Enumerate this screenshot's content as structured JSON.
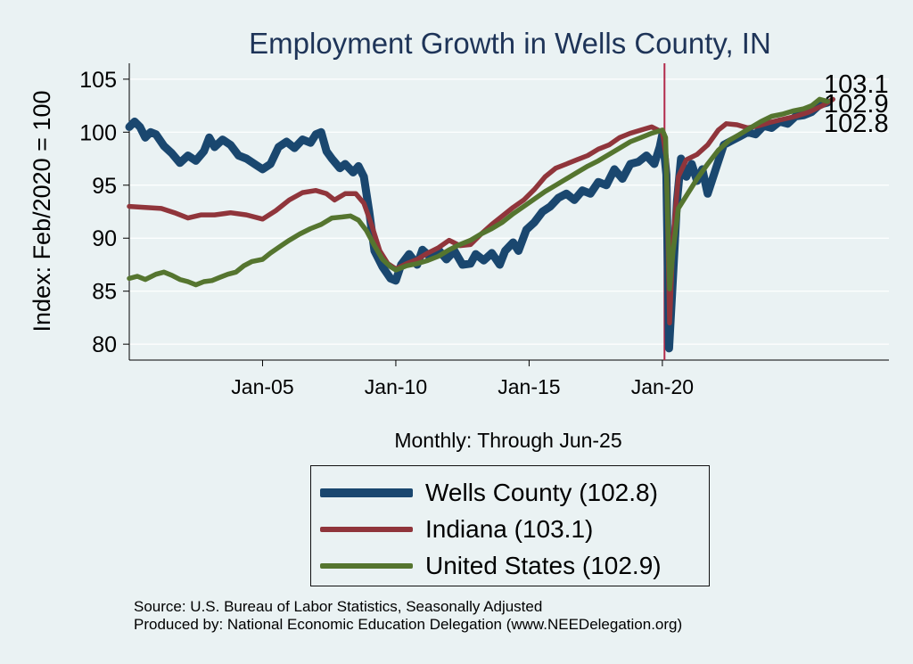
{
  "chart_data": {
    "type": "line",
    "title": "Employment Growth in Wells  County, IN",
    "xlabel": "Monthly: Through Jun-25",
    "ylabel": "Index: Feb/2020 = 100",
    "xlim": [
      2000.0,
      2028.5
    ],
    "ylim": [
      78.5,
      106.5
    ],
    "yticks": [
      80,
      85,
      90,
      95,
      100,
      105
    ],
    "xticks": [
      {
        "label": "Jan-05",
        "value": 2005.0
      },
      {
        "label": "Jan-10",
        "value": 2010.0
      },
      {
        "label": "Jan-15",
        "value": 2015.0
      },
      {
        "label": "Jan-20",
        "value": 2020.0
      }
    ],
    "reference_line_x": 2020.08,
    "series": [
      {
        "name": "Wells County",
        "legend": "Wells  County (102.8)",
        "end_label": "102.8",
        "color": "#1a476f",
        "points": [
          [
            2000.0,
            100.5
          ],
          [
            2000.2,
            101.0
          ],
          [
            2000.4,
            100.5
          ],
          [
            2000.6,
            99.5
          ],
          [
            2000.8,
            100.0
          ],
          [
            2001.0,
            99.8
          ],
          [
            2001.3,
            98.7
          ],
          [
            2001.6,
            98.0
          ],
          [
            2001.9,
            97.1
          ],
          [
            2002.2,
            97.8
          ],
          [
            2002.5,
            97.3
          ],
          [
            2002.8,
            98.2
          ],
          [
            2003.0,
            99.5
          ],
          [
            2003.2,
            98.6
          ],
          [
            2003.5,
            99.3
          ],
          [
            2003.8,
            98.8
          ],
          [
            2004.1,
            97.8
          ],
          [
            2004.4,
            97.5
          ],
          [
            2004.7,
            97.0
          ],
          [
            2005.0,
            96.5
          ],
          [
            2005.3,
            97.0
          ],
          [
            2005.6,
            98.6
          ],
          [
            2005.9,
            99.1
          ],
          [
            2006.2,
            98.5
          ],
          [
            2006.5,
            99.3
          ],
          [
            2006.8,
            99.0
          ],
          [
            2007.0,
            99.8
          ],
          [
            2007.2,
            100.0
          ],
          [
            2007.4,
            98.2
          ],
          [
            2007.6,
            97.5
          ],
          [
            2007.9,
            96.6
          ],
          [
            2008.1,
            97.0
          ],
          [
            2008.4,
            96.2
          ],
          [
            2008.6,
            96.8
          ],
          [
            2008.8,
            95.8
          ],
          [
            2009.0,
            92.5
          ],
          [
            2009.2,
            88.8
          ],
          [
            2009.5,
            87.3
          ],
          [
            2009.8,
            86.2
          ],
          [
            2010.0,
            86.0
          ],
          [
            2010.2,
            87.5
          ],
          [
            2010.5,
            88.5
          ],
          [
            2010.8,
            87.5
          ],
          [
            2011.0,
            88.9
          ],
          [
            2011.3,
            88.2
          ],
          [
            2011.6,
            88.9
          ],
          [
            2011.9,
            88.0
          ],
          [
            2012.2,
            88.8
          ],
          [
            2012.5,
            87.5
          ],
          [
            2012.8,
            87.6
          ],
          [
            2013.0,
            88.5
          ],
          [
            2013.3,
            87.9
          ],
          [
            2013.6,
            88.6
          ],
          [
            2013.9,
            87.5
          ],
          [
            2014.1,
            88.8
          ],
          [
            2014.4,
            89.6
          ],
          [
            2014.6,
            88.8
          ],
          [
            2014.9,
            90.8
          ],
          [
            2015.2,
            91.5
          ],
          [
            2015.5,
            92.5
          ],
          [
            2015.8,
            93.0
          ],
          [
            2016.1,
            93.8
          ],
          [
            2016.4,
            94.2
          ],
          [
            2016.7,
            93.6
          ],
          [
            2017.0,
            94.5
          ],
          [
            2017.3,
            94.2
          ],
          [
            2017.6,
            95.3
          ],
          [
            2017.9,
            95.0
          ],
          [
            2018.2,
            96.5
          ],
          [
            2018.5,
            95.6
          ],
          [
            2018.8,
            97.0
          ],
          [
            2019.1,
            97.2
          ],
          [
            2019.4,
            97.8
          ],
          [
            2019.7,
            97.0
          ],
          [
            2019.9,
            98.6
          ],
          [
            2020.0,
            99.8
          ],
          [
            2020.15,
            96.0
          ],
          [
            2020.25,
            79.6
          ],
          [
            2020.4,
            86.5
          ],
          [
            2020.55,
            93.5
          ],
          [
            2020.7,
            97.5
          ],
          [
            2020.9,
            95.8
          ],
          [
            2021.1,
            97.0
          ],
          [
            2021.3,
            95.4
          ],
          [
            2021.5,
            96.5
          ],
          [
            2021.7,
            94.2
          ],
          [
            2022.0,
            96.5
          ],
          [
            2022.3,
            98.8
          ],
          [
            2022.6,
            99.2
          ],
          [
            2022.9,
            99.6
          ],
          [
            2023.2,
            100.0
          ],
          [
            2023.5,
            99.8
          ],
          [
            2023.8,
            100.6
          ],
          [
            2024.1,
            100.4
          ],
          [
            2024.4,
            101.0
          ],
          [
            2024.7,
            100.8
          ],
          [
            2025.0,
            101.5
          ],
          [
            2025.3,
            101.6
          ],
          [
            2025.6,
            101.9
          ],
          [
            2025.9,
            102.6
          ],
          [
            2026.2,
            102.8
          ]
        ]
      },
      {
        "name": "Indiana",
        "legend": "Indiana (103.1)",
        "end_label": "103.1",
        "color": "#90353b",
        "points": [
          [
            2000.0,
            93.0
          ],
          [
            2000.6,
            92.9
          ],
          [
            2001.2,
            92.8
          ],
          [
            2001.7,
            92.4
          ],
          [
            2002.2,
            91.9
          ],
          [
            2002.7,
            92.2
          ],
          [
            2003.2,
            92.2
          ],
          [
            2003.8,
            92.4
          ],
          [
            2004.4,
            92.2
          ],
          [
            2005.0,
            91.8
          ],
          [
            2005.5,
            92.6
          ],
          [
            2006.0,
            93.6
          ],
          [
            2006.5,
            94.3
          ],
          [
            2007.0,
            94.5
          ],
          [
            2007.4,
            94.2
          ],
          [
            2007.7,
            93.6
          ],
          [
            2008.1,
            94.2
          ],
          [
            2008.5,
            94.2
          ],
          [
            2008.8,
            93.3
          ],
          [
            2009.1,
            91.2
          ],
          [
            2009.4,
            88.8
          ],
          [
            2009.7,
            87.6
          ],
          [
            2010.0,
            87.1
          ],
          [
            2010.4,
            87.6
          ],
          [
            2010.8,
            88.0
          ],
          [
            2011.2,
            88.6
          ],
          [
            2011.6,
            89.1
          ],
          [
            2012.0,
            89.8
          ],
          [
            2012.4,
            89.3
          ],
          [
            2012.8,
            89.4
          ],
          [
            2013.2,
            90.4
          ],
          [
            2013.6,
            91.3
          ],
          [
            2014.0,
            92.1
          ],
          [
            2014.4,
            92.9
          ],
          [
            2014.8,
            93.6
          ],
          [
            2015.2,
            94.6
          ],
          [
            2015.6,
            95.8
          ],
          [
            2016.0,
            96.6
          ],
          [
            2016.4,
            97.0
          ],
          [
            2016.8,
            97.4
          ],
          [
            2017.2,
            97.8
          ],
          [
            2017.6,
            98.4
          ],
          [
            2018.0,
            98.8
          ],
          [
            2018.4,
            99.5
          ],
          [
            2018.8,
            99.9
          ],
          [
            2019.2,
            100.2
          ],
          [
            2019.6,
            100.5
          ],
          [
            2020.0,
            100.0
          ],
          [
            2020.15,
            97.5
          ],
          [
            2020.27,
            82.0
          ],
          [
            2020.4,
            90.0
          ],
          [
            2020.6,
            95.8
          ],
          [
            2020.9,
            97.4
          ],
          [
            2021.3,
            97.9
          ],
          [
            2021.7,
            98.8
          ],
          [
            2022.1,
            100.2
          ],
          [
            2022.4,
            100.8
          ],
          [
            2022.8,
            100.7
          ],
          [
            2023.2,
            100.4
          ],
          [
            2023.6,
            100.6
          ],
          [
            2024.0,
            100.9
          ],
          [
            2024.5,
            101.2
          ],
          [
            2025.0,
            101.5
          ],
          [
            2025.5,
            101.9
          ],
          [
            2026.0,
            102.5
          ],
          [
            2026.4,
            103.1
          ]
        ]
      },
      {
        "name": "United States",
        "legend": "United States (102.9)",
        "end_label": "102.9",
        "color": "#55752f",
        "points": [
          [
            2000.0,
            86.2
          ],
          [
            2000.3,
            86.4
          ],
          [
            2000.6,
            86.1
          ],
          [
            2001.0,
            86.6
          ],
          [
            2001.3,
            86.8
          ],
          [
            2001.6,
            86.5
          ],
          [
            2001.9,
            86.1
          ],
          [
            2002.2,
            85.9
          ],
          [
            2002.5,
            85.6
          ],
          [
            2002.8,
            85.9
          ],
          [
            2003.1,
            86.0
          ],
          [
            2003.4,
            86.3
          ],
          [
            2003.7,
            86.6
          ],
          [
            2004.0,
            86.8
          ],
          [
            2004.3,
            87.4
          ],
          [
            2004.6,
            87.8
          ],
          [
            2005.0,
            88.0
          ],
          [
            2005.3,
            88.6
          ],
          [
            2005.7,
            89.3
          ],
          [
            2006.0,
            89.8
          ],
          [
            2006.4,
            90.4
          ],
          [
            2006.8,
            90.9
          ],
          [
            2007.2,
            91.3
          ],
          [
            2007.6,
            91.9
          ],
          [
            2008.0,
            92.0
          ],
          [
            2008.3,
            92.1
          ],
          [
            2008.6,
            91.7
          ],
          [
            2008.9,
            90.7
          ],
          [
            2009.2,
            89.3
          ],
          [
            2009.5,
            88.0
          ],
          [
            2009.8,
            87.3
          ],
          [
            2010.0,
            87.0
          ],
          [
            2010.4,
            87.4
          ],
          [
            2010.8,
            87.6
          ],
          [
            2011.2,
            87.9
          ],
          [
            2011.6,
            88.3
          ],
          [
            2012.0,
            88.9
          ],
          [
            2012.4,
            89.4
          ],
          [
            2012.8,
            89.8
          ],
          [
            2013.2,
            90.4
          ],
          [
            2013.6,
            90.9
          ],
          [
            2014.0,
            91.5
          ],
          [
            2014.4,
            92.3
          ],
          [
            2014.8,
            93.0
          ],
          [
            2015.2,
            93.7
          ],
          [
            2015.6,
            94.4
          ],
          [
            2016.0,
            95.0
          ],
          [
            2016.4,
            95.6
          ],
          [
            2016.8,
            96.2
          ],
          [
            2017.2,
            96.8
          ],
          [
            2017.6,
            97.3
          ],
          [
            2018.0,
            97.9
          ],
          [
            2018.4,
            98.5
          ],
          [
            2018.8,
            99.1
          ],
          [
            2019.2,
            99.5
          ],
          [
            2019.6,
            99.9
          ],
          [
            2020.0,
            100.2
          ],
          [
            2020.12,
            99.5
          ],
          [
            2020.27,
            85.2
          ],
          [
            2020.4,
            88.8
          ],
          [
            2020.6,
            92.8
          ],
          [
            2020.9,
            94.0
          ],
          [
            2021.3,
            95.6
          ],
          [
            2021.7,
            97.0
          ],
          [
            2022.1,
            98.3
          ],
          [
            2022.5,
            99.2
          ],
          [
            2022.9,
            99.8
          ],
          [
            2023.3,
            100.4
          ],
          [
            2023.7,
            101.0
          ],
          [
            2024.1,
            101.5
          ],
          [
            2024.5,
            101.7
          ],
          [
            2024.9,
            102.0
          ],
          [
            2025.3,
            102.2
          ],
          [
            2025.6,
            102.5
          ],
          [
            2025.9,
            103.1
          ],
          [
            2026.2,
            102.9
          ]
        ]
      }
    ]
  },
  "footer": {
    "source": "Source: U.S. Bureau of Labor Statistics, Seasonally Adjusted",
    "producer": "Produced by: National Economic Education Delegation (www.NEEDelegation.org)"
  }
}
